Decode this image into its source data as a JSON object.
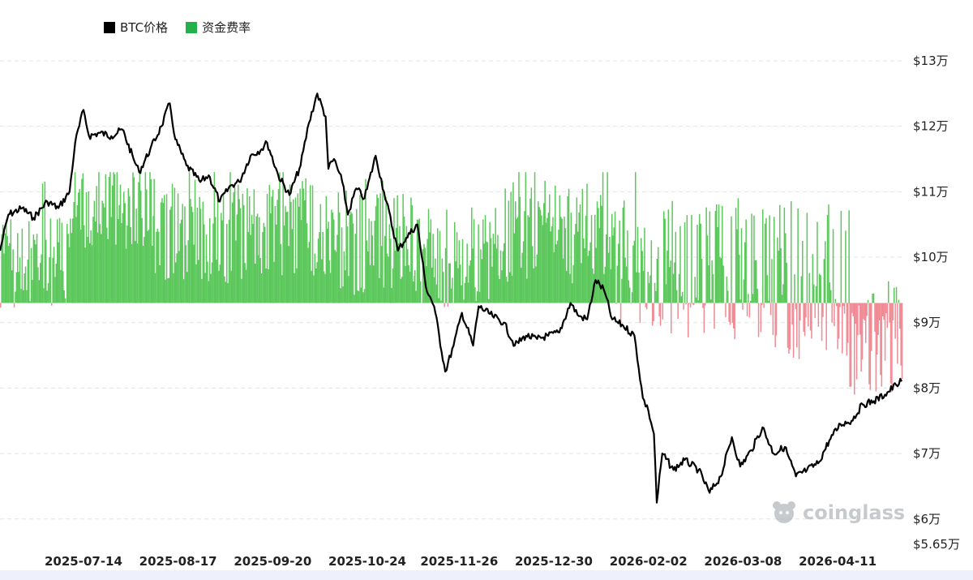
{
  "legend": {
    "items": [
      {
        "label": "BTC价格",
        "color": "#000000"
      },
      {
        "label": "资金费率",
        "color": "#22b14c"
      }
    ]
  },
  "watermark": {
    "text": "coinglass"
  },
  "colors": {
    "price_line": "#000000",
    "funding_positive": "#5cc85c",
    "funding_negative": "#f08a94",
    "grid": "#e4e4e4"
  },
  "chart_data": {
    "type": "line",
    "y_axis": {
      "position": "right",
      "min": 56500,
      "max": 130000,
      "ticks": [
        {
          "value": 130000,
          "label": "$13万"
        },
        {
          "value": 120000,
          "label": "$12万"
        },
        {
          "value": 110000,
          "label": "$11万"
        },
        {
          "value": 100000,
          "label": "$10万"
        },
        {
          "value": 90000,
          "label": "$9万"
        },
        {
          "value": 80000,
          "label": "$8万"
        },
        {
          "value": 70000,
          "label": "$7万"
        },
        {
          "value": 60000,
          "label": "$6万"
        },
        {
          "value": 56500,
          "label": "$5.65万"
        }
      ]
    },
    "x_axis": {
      "start": "2025-06-14",
      "end": "2026-05-04",
      "ticks": [
        "2025-07-14",
        "2025-08-17",
        "2025-09-20",
        "2025-10-24",
        "2025-11-26",
        "2025-12-30",
        "2026-02-02",
        "2026-03-08",
        "2026-04-11"
      ]
    },
    "grid": true,
    "legend_position": "top-left",
    "series": [
      {
        "name": "BTC价格",
        "type": "line",
        "points": [
          [
            "2025-06-14",
            101000
          ],
          [
            "2025-06-17",
            106500
          ],
          [
            "2025-06-22",
            107500
          ],
          [
            "2025-06-26",
            106000
          ],
          [
            "2025-07-01",
            108500
          ],
          [
            "2025-07-05",
            107500
          ],
          [
            "2025-07-09",
            110000
          ],
          [
            "2025-07-11",
            117500
          ],
          [
            "2025-07-14",
            122500
          ],
          [
            "2025-07-16",
            118500
          ],
          [
            "2025-07-20",
            119000
          ],
          [
            "2025-07-24",
            118500
          ],
          [
            "2025-07-28",
            119500
          ],
          [
            "2025-08-01",
            115000
          ],
          [
            "2025-08-03",
            113000
          ],
          [
            "2025-08-07",
            116500
          ],
          [
            "2025-08-11",
            120000
          ],
          [
            "2025-08-14",
            123500
          ],
          [
            "2025-08-16",
            118000
          ],
          [
            "2025-08-20",
            114000
          ],
          [
            "2025-08-25",
            111500
          ],
          [
            "2025-08-28",
            112500
          ],
          [
            "2025-09-01",
            108500
          ],
          [
            "2025-09-05",
            111000
          ],
          [
            "2025-09-08",
            111500
          ],
          [
            "2025-09-12",
            115500
          ],
          [
            "2025-09-16",
            116500
          ],
          [
            "2025-09-18",
            117500
          ],
          [
            "2025-09-22",
            112500
          ],
          [
            "2025-09-26",
            109500
          ],
          [
            "2025-09-30",
            114000
          ],
          [
            "2025-10-03",
            120500
          ],
          [
            "2025-10-06",
            125000
          ],
          [
            "2025-10-09",
            121500
          ],
          [
            "2025-10-10",
            113500
          ],
          [
            "2025-10-12",
            115000
          ],
          [
            "2025-10-15",
            111500
          ],
          [
            "2025-10-17",
            106500
          ],
          [
            "2025-10-20",
            110500
          ],
          [
            "2025-10-23",
            109000
          ],
          [
            "2025-10-27",
            115500
          ],
          [
            "2025-10-30",
            110000
          ],
          [
            "2025-11-04",
            101000
          ],
          [
            "2025-11-07",
            103000
          ],
          [
            "2025-11-11",
            105000
          ],
          [
            "2025-11-14",
            95500
          ],
          [
            "2025-11-17",
            92500
          ],
          [
            "2025-11-21",
            82500
          ],
          [
            "2025-11-24",
            86500
          ],
          [
            "2025-11-27",
            91500
          ],
          [
            "2025-12-01",
            86500
          ],
          [
            "2025-12-03",
            92500
          ],
          [
            "2025-12-08",
            91000
          ],
          [
            "2025-12-12",
            90000
          ],
          [
            "2025-12-16",
            86500
          ],
          [
            "2025-12-20",
            88000
          ],
          [
            "2025-12-24",
            87500
          ],
          [
            "2025-12-28",
            88000
          ],
          [
            "2026-01-01",
            88500
          ],
          [
            "2026-01-05",
            93000
          ],
          [
            "2026-01-08",
            91000
          ],
          [
            "2026-01-11",
            90500
          ],
          [
            "2026-01-14",
            96500
          ],
          [
            "2026-01-17",
            95000
          ],
          [
            "2026-01-20",
            90500
          ],
          [
            "2026-01-24",
            89500
          ],
          [
            "2026-01-28",
            88000
          ],
          [
            "2026-01-31",
            78500
          ],
          [
            "2026-02-02",
            76500
          ],
          [
            "2026-02-04",
            73000
          ],
          [
            "2026-02-05",
            62500
          ],
          [
            "2026-02-07",
            70000
          ],
          [
            "2026-02-11",
            67500
          ],
          [
            "2026-02-15",
            69000
          ],
          [
            "2026-02-20",
            67500
          ],
          [
            "2026-02-24",
            64000
          ],
          [
            "2026-02-28",
            66500
          ],
          [
            "2026-03-04",
            72500
          ],
          [
            "2026-03-07",
            68000
          ],
          [
            "2026-03-11",
            70500
          ],
          [
            "2026-03-15",
            74000
          ],
          [
            "2026-03-19",
            70000
          ],
          [
            "2026-03-23",
            71000
          ],
          [
            "2026-03-27",
            66500
          ],
          [
            "2026-03-31",
            67500
          ],
          [
            "2026-04-04",
            68500
          ],
          [
            "2026-04-08",
            72000
          ],
          [
            "2026-04-12",
            74500
          ],
          [
            "2026-04-16",
            75000
          ],
          [
            "2026-04-20",
            77500
          ],
          [
            "2026-04-24",
            78000
          ],
          [
            "2026-04-28",
            79000
          ],
          [
            "2026-05-02",
            80500
          ],
          [
            "2026-05-04",
            81000
          ]
        ]
      },
      {
        "name": "资金费率",
        "type": "area",
        "baseline_price": 93000,
        "note_values": "relative funding-rate magnitude per period; positive above baseline, negative below",
        "segments": [
          {
            "from": "2025-06-14",
            "to": "2025-07-08",
            "level": 0.3,
            "variation": 0.35
          },
          {
            "from": "2025-07-08",
            "to": "2025-08-08",
            "level": 0.75,
            "variation": 0.35
          },
          {
            "from": "2025-08-08",
            "to": "2025-09-15",
            "level": 0.55,
            "variation": 0.4
          },
          {
            "from": "2025-09-15",
            "to": "2025-10-10",
            "level": 0.6,
            "variation": 0.4
          },
          {
            "from": "2025-10-10",
            "to": "2025-11-10",
            "level": 0.45,
            "variation": 0.4
          },
          {
            "from": "2025-11-10",
            "to": "2025-12-10",
            "level": 0.35,
            "variation": 0.4
          },
          {
            "from": "2025-12-10",
            "to": "2026-01-20",
            "level": 0.55,
            "variation": 0.4
          },
          {
            "from": "2026-01-20",
            "to": "2026-02-10",
            "level": 0.25,
            "variation": 0.55
          },
          {
            "from": "2026-02-10",
            "to": "2026-03-15",
            "level": 0.2,
            "variation": 0.6
          },
          {
            "from": "2026-03-15",
            "to": "2026-04-15",
            "level": 0.1,
            "variation": 0.7
          },
          {
            "from": "2026-04-15",
            "to": "2026-05-04",
            "level": -0.4,
            "variation": 0.6
          }
        ]
      }
    ]
  }
}
